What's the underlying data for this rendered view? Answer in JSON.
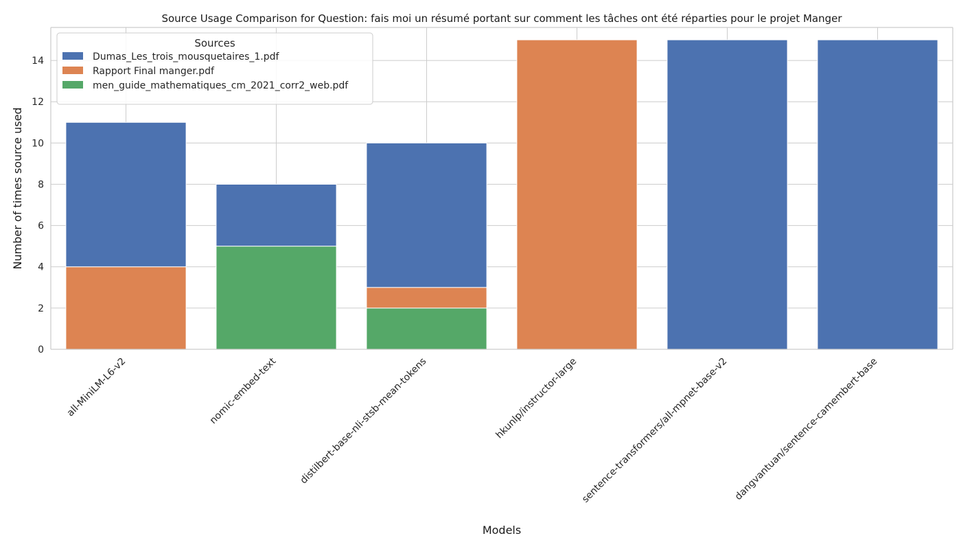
{
  "chart_data": {
    "type": "bar",
    "stacked": true,
    "title": "Source Usage Comparison for Question: fais moi un résumé portant sur comment les tâches ont été réparties pour le projet Manger",
    "xlabel": "Models",
    "ylabel": "Number of times source used",
    "categories": [
      "all-MiniLM-L6-v2",
      "nomic-embed-text",
      "distilbert-base-nli-stsb-mean-tokens",
      "hkunlp/instructor-large",
      "sentence-transformers/all-mpnet-base-v2",
      "dangvantuan/sentence-camembert-base"
    ],
    "series": [
      {
        "name": "men_guide_mathematiques_cm_2021_corr2_web.pdf",
        "color": "#55a868",
        "values": [
          0,
          5,
          2,
          0,
          0,
          0
        ]
      },
      {
        "name": "Rapport Final manger.pdf",
        "color": "#dd8452",
        "values": [
          4,
          0,
          1,
          15,
          0,
          0
        ]
      },
      {
        "name": "Dumas_Les_trois_mousquetaires_1.pdf",
        "color": "#4c72b0",
        "values": [
          7,
          3,
          7,
          0,
          15,
          15
        ]
      }
    ],
    "legend_order": [
      2,
      1,
      0
    ],
    "legend_title": "Sources",
    "legend_position": "top-left",
    "ylim": [
      0,
      15.6
    ],
    "yticks": [
      0,
      2,
      4,
      6,
      8,
      10,
      12,
      14
    ],
    "grid": true,
    "x_tick_rotation_deg": -45
  }
}
